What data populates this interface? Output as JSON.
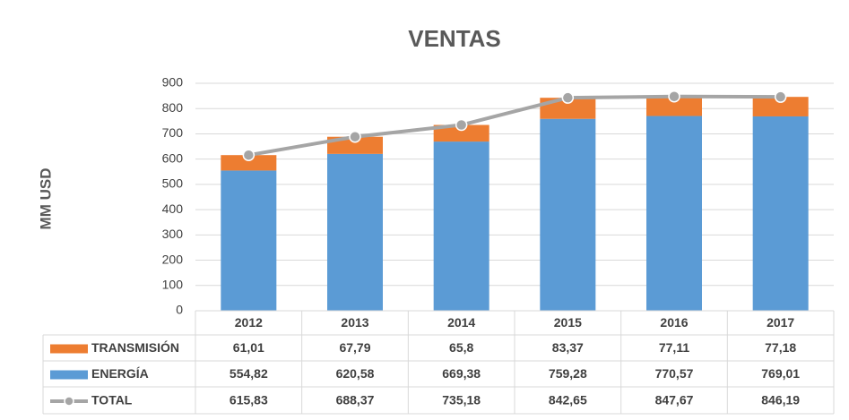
{
  "chart_data": {
    "type": "bar",
    "title": "VENTAS",
    "y_label": "MM USD",
    "categories": [
      "2012",
      "2013",
      "2014",
      "2015",
      "2016",
      "2017"
    ],
    "series": [
      {
        "name": "TRANSMISIÓN",
        "type": "bar",
        "color": "#ed7d31",
        "values": [
          61.01,
          67.79,
          65.8,
          83.37,
          77.11,
          77.18
        ],
        "value_labels": [
          "61,01",
          "67,79",
          "65,8",
          "83,37",
          "77,11",
          "77,18"
        ]
      },
      {
        "name": "ENERGÍA",
        "type": "bar",
        "color": "#5b9bd5",
        "values": [
          554.82,
          620.58,
          669.38,
          759.28,
          770.57,
          769.01
        ],
        "value_labels": [
          "554,82",
          "620,58",
          "669,38",
          "759,28",
          "770,57",
          "769,01"
        ]
      },
      {
        "name": "TOTAL",
        "type": "line",
        "color": "#a5a5a5",
        "values": [
          615.83,
          688.37,
          735.18,
          842.65,
          847.67,
          846.19
        ],
        "value_labels": [
          "615,83",
          "688,37",
          "735,18",
          "842,65",
          "847,67",
          "846,19"
        ]
      }
    ],
    "ylim": [
      0,
      900
    ],
    "yticks": [
      0,
      100,
      200,
      300,
      400,
      500,
      600,
      700,
      800,
      900
    ],
    "grid": true
  }
}
